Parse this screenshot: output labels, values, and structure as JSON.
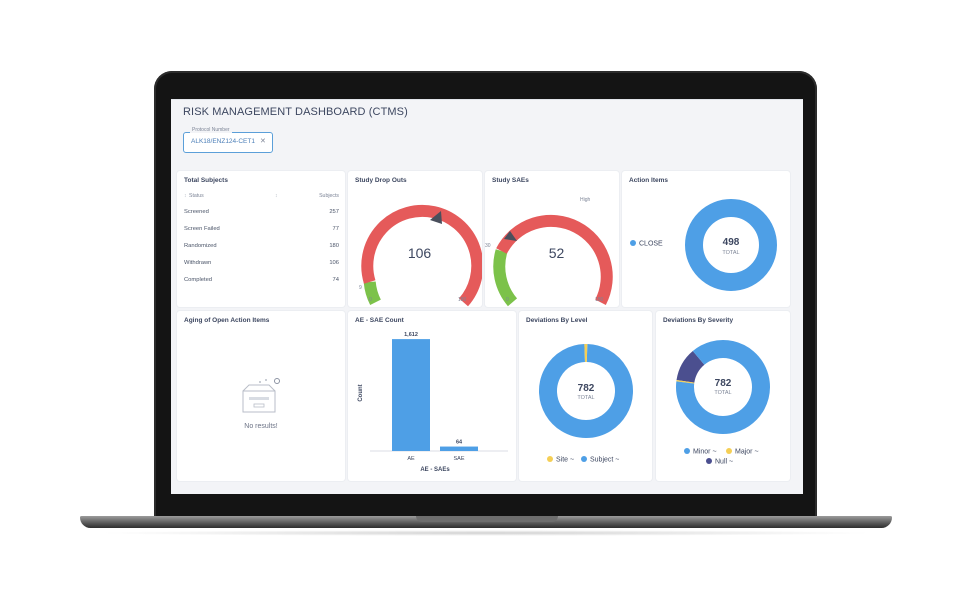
{
  "dashboard": {
    "title": "RISK MANAGEMENT DASHBOARD (CTMS)",
    "filter": {
      "label": "Protocol Number",
      "value": "ALK18/ENZ124-CET1",
      "clear_icon": "close-icon"
    }
  },
  "total_subjects": {
    "title": "Total Subjects",
    "columns": [
      "Status",
      "Subjects"
    ],
    "rows": [
      {
        "status": "Screened",
        "subjects": "257"
      },
      {
        "status": "Screen Failed",
        "subjects": "77"
      },
      {
        "status": "Randomized",
        "subjects": "180"
      },
      {
        "status": "Withdrawn",
        "subjects": "106"
      },
      {
        "status": "Completed",
        "subjects": "74"
      }
    ]
  },
  "study_drop_outs": {
    "title": "Study Drop Outs",
    "value": "106",
    "min": "0",
    "max": "180",
    "low_mark": "9",
    "colors": {
      "low": "#7cc24a",
      "high": "#e55a5a"
    }
  },
  "study_saes": {
    "title": "Study SAEs",
    "value": "52",
    "min": "0",
    "max": "180",
    "mid_mark": "30",
    "high_label": "High",
    "colors": {
      "low": "#7cc24a",
      "high": "#e55a5a"
    }
  },
  "action_items": {
    "title": "Action Items",
    "total": "498",
    "total_label": "TOTAL",
    "legend": [
      {
        "label": "CLOSE",
        "color": "#4e9fe6"
      }
    ]
  },
  "aging_open_action_items": {
    "title": "Aging of Open Action Items",
    "empty_text": "No results!",
    "icon": "empty-box-icon"
  },
  "ae_sae_count": {
    "title": "AE - SAE Count",
    "ylabel": "Count",
    "xlabel": "AE - SAEs"
  },
  "chart_data": {
    "type": "bar",
    "title": "AE - SAE Count",
    "categories": [
      "AE",
      "SAE"
    ],
    "values": [
      1612,
      64
    ],
    "value_labels": [
      "1,612",
      "64"
    ],
    "xlabel": "AE - SAEs",
    "ylabel": "Count",
    "ylim": [
      0,
      1700
    ],
    "color": "#4e9fe6"
  },
  "deviations_by_level": {
    "title": "Deviations By Level",
    "total": "782",
    "total_label": "TOTAL",
    "legend": [
      {
        "label": "Site ~",
        "color": "#f5cf55"
      },
      {
        "label": "Subject ~",
        "color": "#4e9fe6"
      }
    ],
    "shares": [
      0.01,
      0.99
    ]
  },
  "deviations_by_severity": {
    "title": "Deviations By Severity",
    "total": "782",
    "total_label": "TOTAL",
    "legend": [
      {
        "label": "Minor ~",
        "color": "#4e9fe6"
      },
      {
        "label": "Major ~",
        "color": "#f5cf55"
      },
      {
        "label": "Null ~",
        "color": "#4b4f8f"
      }
    ],
    "shares": [
      0.88,
      0.005,
      0.115
    ]
  }
}
